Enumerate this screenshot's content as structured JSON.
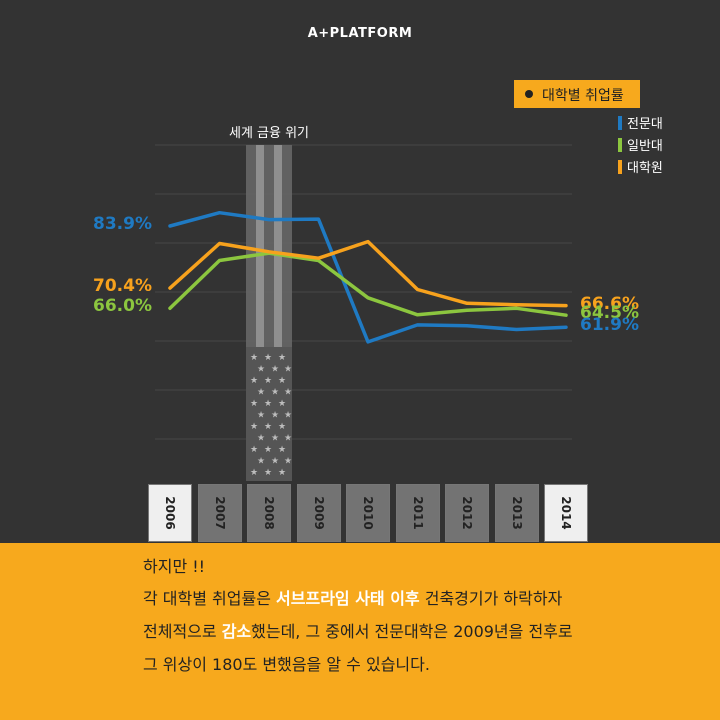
{
  "brand": "A+PLATFORM",
  "legend": {
    "title": "대학별 취업률",
    "items": [
      {
        "label": "전문대",
        "color": "#1f7ac3"
      },
      {
        "label": "일반대",
        "color": "#8cc63f"
      },
      {
        "label": "대학원",
        "color": "#f7a21d"
      }
    ]
  },
  "annotation": "세계 금융 위기",
  "chart_data": {
    "type": "line",
    "title": "대학별 취업률",
    "x": [
      "2006",
      "2007",
      "2008",
      "2009",
      "2010",
      "2011",
      "2012",
      "2013",
      "2014"
    ],
    "series": [
      {
        "name": "전문대",
        "color": "#1f7ac3",
        "values": [
          83.9,
          86.8,
          85.3,
          85.4,
          58.7,
          62.4,
          62.2,
          61.4,
          61.9
        ]
      },
      {
        "name": "일반대",
        "color": "#8cc63f",
        "values": [
          66.0,
          76.4,
          78.0,
          76.4,
          68.3,
          64.6,
          65.6,
          66.0,
          64.5
        ]
      },
      {
        "name": "대학원",
        "color": "#f7a21d",
        "values": [
          70.4,
          80.1,
          78.3,
          76.9,
          80.5,
          70.1,
          67.1,
          66.8,
          66.6
        ]
      }
    ],
    "labels": [
      {
        "series": "전문대",
        "year": "2006",
        "text": "83.9%"
      },
      {
        "series": "대학원",
        "year": "2006",
        "text": "70.4%"
      },
      {
        "series": "일반대",
        "year": "2006",
        "text": "66.0%"
      },
      {
        "series": "대학원",
        "year": "2014",
        "text": "66.6%"
      },
      {
        "series": "일반대",
        "year": "2014",
        "text": "64.5%"
      },
      {
        "series": "전문대",
        "year": "2014",
        "text": "61.9%"
      }
    ],
    "highlight_years": [
      "2006",
      "2014"
    ],
    "crisis_year": "2008",
    "grid": true
  },
  "text": {
    "line1": "하지만 !!",
    "line2_pre": "각 대학별 취업률은 ",
    "line2_hl": "서브프라임 사태 이후",
    "line2_post": " 건축경기가 하락하자",
    "line3_pre": "전체적으로 ",
    "line3_hl": "감소",
    "line3_post": "했는데, 그 중에서 전문대학은 2009년을 전후로",
    "line4": "그 위상이 180도 변했음을 알 수 있습니다."
  }
}
